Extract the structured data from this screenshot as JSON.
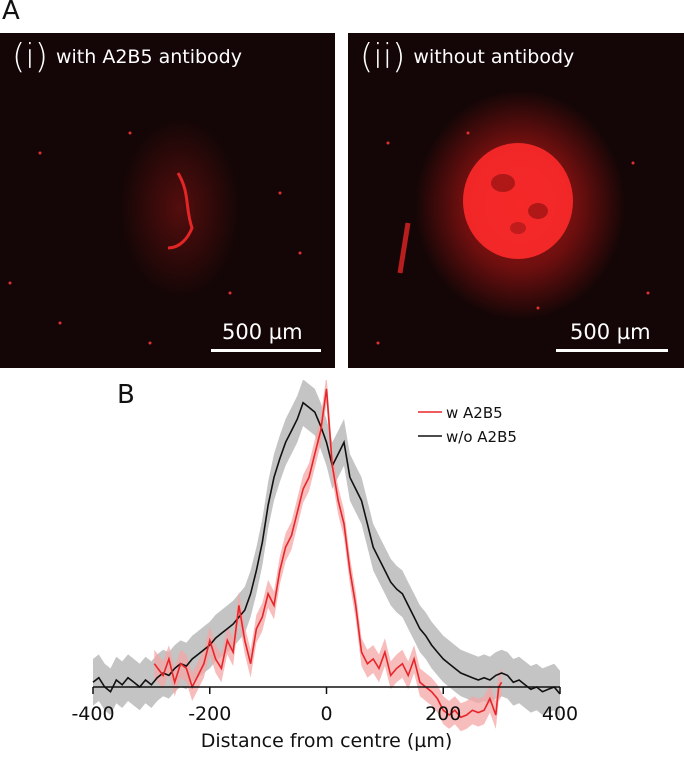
{
  "panel_a": {
    "letter": "A",
    "images": [
      {
        "numeral": "(i)",
        "caption": "with A2B5 antibody",
        "scale_label": "500 µm"
      },
      {
        "numeral": "(ii)",
        "caption": "without antibody",
        "scale_label": "500 µm"
      }
    ]
  },
  "panel_b": {
    "letter": "B"
  },
  "chart_data": {
    "type": "line",
    "title": "",
    "xlabel": "Distance from centre (µm)",
    "ylabel": "",
    "xlim": [
      -400,
      400
    ],
    "xticks": [
      -400,
      -200,
      0,
      200,
      400
    ],
    "xtick_labels": [
      "-400",
      "-200",
      "0",
      "200",
      "400"
    ],
    "legend_position": "top-right",
    "series": [
      {
        "name": "w A2B5",
        "color": "#e8262a",
        "band_color": "#f4a6a6",
        "x": [
          -295,
          -280,
          -270,
          -260,
          -250,
          -240,
          -230,
          -220,
          -210,
          -200,
          -190,
          -180,
          -170,
          -160,
          -150,
          -140,
          -130,
          -120,
          -110,
          -100,
          -90,
          -80,
          -70,
          -60,
          -50,
          -40,
          -30,
          -20,
          -10,
          0,
          10,
          20,
          30,
          40,
          50,
          60,
          70,
          80,
          90,
          100,
          110,
          120,
          130,
          140,
          150,
          160,
          170,
          180,
          190,
          200,
          210,
          220,
          230,
          240,
          250,
          260,
          270,
          280,
          290,
          295,
          300
        ],
        "y": [
          0.1,
          0.05,
          0.12,
          0.02,
          0.1,
          0.08,
          0.0,
          0.05,
          0.1,
          0.2,
          0.12,
          0.08,
          0.2,
          0.15,
          0.35,
          0.2,
          0.1,
          0.25,
          0.3,
          0.4,
          0.35,
          0.5,
          0.6,
          0.65,
          0.75,
          0.85,
          0.9,
          1.0,
          1.1,
          1.28,
          0.95,
          0.8,
          0.7,
          0.5,
          0.35,
          0.15,
          0.1,
          0.12,
          0.08,
          0.15,
          0.05,
          0.08,
          0.1,
          0.05,
          0.12,
          0.02,
          0.0,
          -0.02,
          -0.05,
          -0.1,
          -0.12,
          -0.1,
          -0.13,
          -0.12,
          -0.1,
          -0.11,
          -0.1,
          -0.05,
          -0.12,
          0.0,
          0.02
        ],
        "band": 0.06
      },
      {
        "name": "w/o A2B5",
        "color": "#111111",
        "band_color": "#c4c4c4",
        "x": [
          -400,
          -390,
          -380,
          -370,
          -360,
          -350,
          -340,
          -330,
          -320,
          -310,
          -300,
          -290,
          -280,
          -270,
          -260,
          -250,
          -240,
          -230,
          -220,
          -210,
          -200,
          -190,
          -180,
          -170,
          -160,
          -150,
          -140,
          -130,
          -120,
          -110,
          -100,
          -90,
          -80,
          -70,
          -60,
          -50,
          -40,
          -30,
          -20,
          -10,
          0,
          10,
          20,
          30,
          40,
          50,
          60,
          70,
          80,
          90,
          100,
          110,
          120,
          130,
          140,
          150,
          160,
          170,
          180,
          190,
          200,
          210,
          220,
          230,
          240,
          250,
          260,
          270,
          280,
          290,
          300,
          310,
          320,
          330,
          340,
          350,
          360,
          370,
          380,
          390,
          400
        ],
        "y": [
          0.02,
          0.04,
          0.0,
          -0.02,
          0.03,
          0.01,
          0.04,
          0.02,
          0.0,
          0.03,
          0.01,
          0.04,
          0.06,
          0.05,
          0.08,
          0.1,
          0.09,
          0.12,
          0.14,
          0.16,
          0.18,
          0.21,
          0.23,
          0.25,
          0.27,
          0.3,
          0.33,
          0.4,
          0.5,
          0.62,
          0.78,
          0.9,
          0.98,
          1.05,
          1.1,
          1.15,
          1.22,
          1.2,
          1.18,
          1.12,
          1.05,
          0.95,
          1.0,
          1.05,
          0.9,
          0.85,
          0.8,
          0.7,
          0.6,
          0.55,
          0.5,
          0.45,
          0.42,
          0.4,
          0.35,
          0.3,
          0.25,
          0.22,
          0.18,
          0.15,
          0.12,
          0.1,
          0.08,
          0.06,
          0.05,
          0.04,
          0.03,
          0.04,
          0.03,
          0.05,
          0.06,
          0.05,
          0.02,
          0.03,
          0.01,
          -0.01,
          0.0,
          -0.02,
          -0.01,
          0.0,
          -0.03
        ],
        "band": 0.1
      }
    ]
  }
}
